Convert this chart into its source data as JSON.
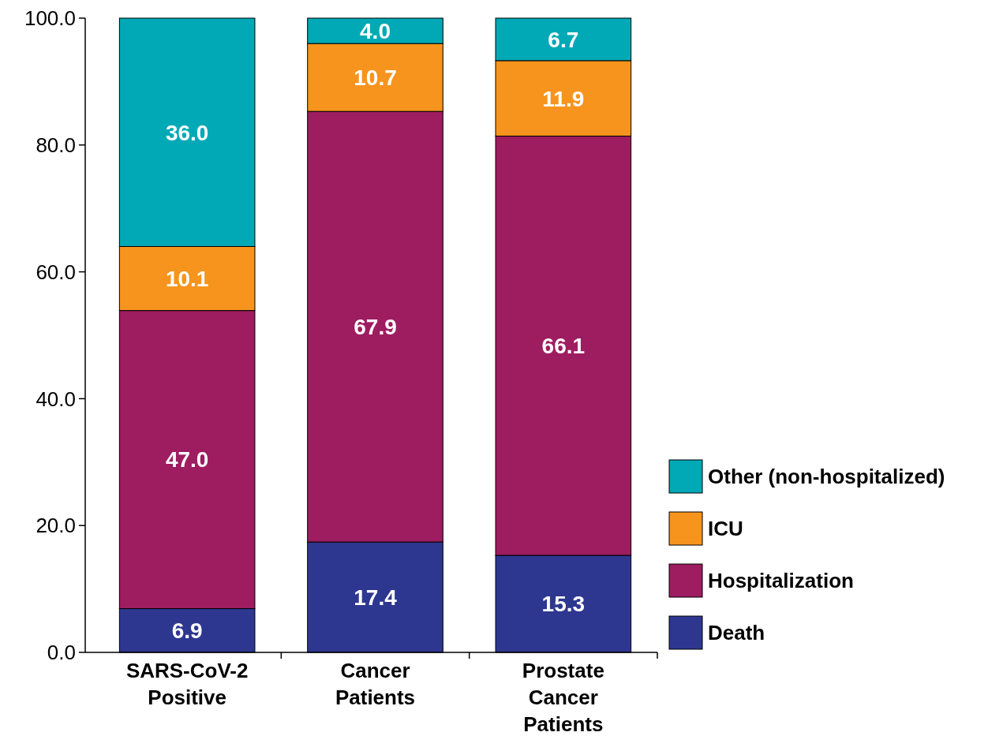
{
  "chart_data": {
    "type": "bar",
    "stacked": true,
    "legend": "bottom right",
    "grid": false,
    "categories": [
      "SARS-CoV-2 Positive",
      "Cancer Patients",
      "Prostate Cancer Patients"
    ],
    "series": [
      {
        "name": "Death",
        "color": "#2e3790",
        "values": [
          6.9,
          17.4,
          15.3
        ],
        "value_labels": [
          "6.9",
          "17.4",
          "15.3"
        ]
      },
      {
        "name": "Hospitalization",
        "color": "#9e1c60",
        "values": [
          47.0,
          67.9,
          66.1
        ],
        "value_labels": [
          "47.0",
          "67.9",
          "66.1"
        ]
      },
      {
        "name": "ICU",
        "color": "#f7941d",
        "values": [
          10.1,
          10.7,
          11.9
        ],
        "value_labels": [
          "10.1",
          "10.7",
          "11.9"
        ]
      },
      {
        "name": "Other (non-hospitalized)",
        "color": "#00a9b5",
        "values": [
          36.0,
          4.0,
          6.7
        ],
        "value_labels": [
          "36.0",
          "4.0",
          "6.7"
        ]
      }
    ],
    "ylim": [
      0,
      100
    ],
    "yticks": [
      {
        "value": 0,
        "label": "0.0"
      },
      {
        "value": 20,
        "label": "20.0"
      },
      {
        "value": 40,
        "label": "40.0"
      },
      {
        "value": 60,
        "label": "60.0"
      },
      {
        "value": 80,
        "label": "80.0"
      },
      {
        "value": 100,
        "label": "100.0"
      }
    ]
  }
}
